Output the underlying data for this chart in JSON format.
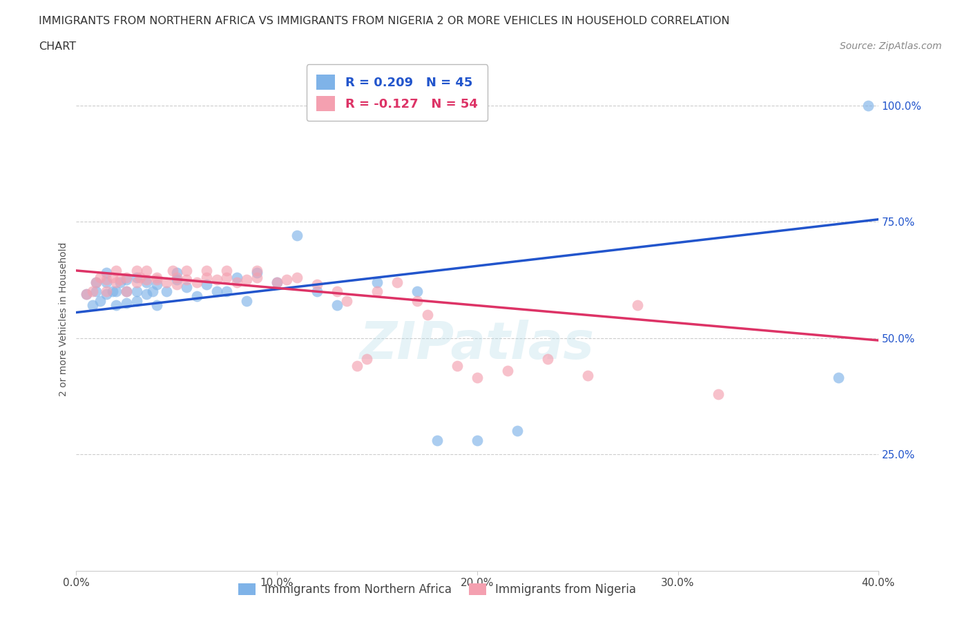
{
  "title_line1": "IMMIGRANTS FROM NORTHERN AFRICA VS IMMIGRANTS FROM NIGERIA 2 OR MORE VEHICLES IN HOUSEHOLD CORRELATION",
  "title_line2": "CHART",
  "source": "Source: ZipAtlas.com",
  "ylabel": "2 or more Vehicles in Household",
  "xlim": [
    0.0,
    0.4
  ],
  "ylim": [
    0.0,
    1.08
  ],
  "xticks": [
    0.0,
    0.1,
    0.2,
    0.3,
    0.4
  ],
  "xticklabels": [
    "0.0%",
    "10.0%",
    "20.0%",
    "30.0%",
    "40.0%"
  ],
  "yticks": [
    0.25,
    0.5,
    0.75,
    1.0
  ],
  "yticklabels": [
    "25.0%",
    "50.0%",
    "75.0%",
    "100.0%"
  ],
  "blue_color": "#7fb3e8",
  "pink_color": "#f4a0b0",
  "blue_line_color": "#2255cc",
  "pink_line_color": "#dd3366",
  "R_blue": 0.209,
  "N_blue": 45,
  "R_pink": -0.127,
  "N_pink": 54,
  "legend_label_blue": "Immigrants from Northern Africa",
  "legend_label_pink": "Immigrants from Nigeria",
  "watermark": "ZIPatlas",
  "blue_line_x0": 0.0,
  "blue_line_y0": 0.555,
  "blue_line_x1": 0.4,
  "blue_line_y1": 0.755,
  "pink_line_x0": 0.0,
  "pink_line_y0": 0.645,
  "pink_line_x1": 0.4,
  "pink_line_y1": 0.495,
  "blue_scatter_x": [
    0.005,
    0.008,
    0.01,
    0.01,
    0.012,
    0.015,
    0.015,
    0.015,
    0.018,
    0.02,
    0.02,
    0.022,
    0.025,
    0.025,
    0.025,
    0.03,
    0.03,
    0.03,
    0.035,
    0.035,
    0.038,
    0.04,
    0.04,
    0.045,
    0.05,
    0.05,
    0.055,
    0.06,
    0.065,
    0.07,
    0.075,
    0.08,
    0.085,
    0.09,
    0.1,
    0.11,
    0.12,
    0.13,
    0.15,
    0.17,
    0.18,
    0.2,
    0.22,
    0.38,
    0.395
  ],
  "blue_scatter_y": [
    0.595,
    0.57,
    0.6,
    0.62,
    0.58,
    0.595,
    0.62,
    0.64,
    0.6,
    0.57,
    0.6,
    0.62,
    0.575,
    0.6,
    0.625,
    0.58,
    0.6,
    0.63,
    0.595,
    0.62,
    0.6,
    0.57,
    0.615,
    0.6,
    0.625,
    0.64,
    0.61,
    0.59,
    0.615,
    0.6,
    0.6,
    0.63,
    0.58,
    0.64,
    0.62,
    0.72,
    0.6,
    0.57,
    0.62,
    0.6,
    0.28,
    0.28,
    0.3,
    0.415,
    1.0
  ],
  "pink_scatter_x": [
    0.005,
    0.008,
    0.01,
    0.012,
    0.015,
    0.015,
    0.018,
    0.02,
    0.02,
    0.022,
    0.025,
    0.025,
    0.03,
    0.03,
    0.032,
    0.035,
    0.035,
    0.04,
    0.04,
    0.045,
    0.048,
    0.05,
    0.05,
    0.055,
    0.055,
    0.06,
    0.065,
    0.065,
    0.07,
    0.075,
    0.075,
    0.08,
    0.085,
    0.09,
    0.09,
    0.1,
    0.105,
    0.11,
    0.12,
    0.13,
    0.135,
    0.14,
    0.145,
    0.15,
    0.16,
    0.17,
    0.175,
    0.19,
    0.2,
    0.215,
    0.235,
    0.255,
    0.28,
    0.32
  ],
  "pink_scatter_y": [
    0.595,
    0.6,
    0.62,
    0.63,
    0.6,
    0.625,
    0.63,
    0.62,
    0.645,
    0.625,
    0.6,
    0.63,
    0.62,
    0.645,
    0.63,
    0.625,
    0.645,
    0.625,
    0.63,
    0.62,
    0.645,
    0.615,
    0.63,
    0.625,
    0.645,
    0.62,
    0.63,
    0.645,
    0.625,
    0.63,
    0.645,
    0.62,
    0.625,
    0.63,
    0.645,
    0.62,
    0.625,
    0.63,
    0.615,
    0.6,
    0.58,
    0.44,
    0.455,
    0.6,
    0.62,
    0.58,
    0.55,
    0.44,
    0.415,
    0.43,
    0.455,
    0.42,
    0.57,
    0.38
  ]
}
